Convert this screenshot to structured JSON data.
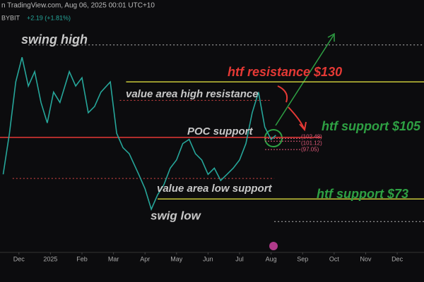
{
  "chart_data": {
    "type": "line",
    "header": "n TradingView.com, Aug 06, 2025 00:01 UTC+10",
    "symbol": "BYBIT",
    "change": "+2.19 (+1.81%)",
    "xlim": [
      -0.6,
      12.85
    ],
    "ylim": [
      47,
      163
    ],
    "xticks": [
      {
        "value": 0,
        "label": "Dec"
      },
      {
        "value": 1,
        "label": "2025"
      },
      {
        "value": 2,
        "label": "Feb"
      },
      {
        "value": 3,
        "label": "Mar"
      },
      {
        "value": 4,
        "label": "Apr"
      },
      {
        "value": 5,
        "label": "May"
      },
      {
        "value": 6,
        "label": "Jun"
      },
      {
        "value": 7,
        "label": "Jul"
      },
      {
        "value": 8,
        "label": "Aug"
      },
      {
        "value": 9,
        "label": "Sep"
      },
      {
        "value": 10,
        "label": "Oct"
      },
      {
        "value": 11,
        "label": "Nov"
      },
      {
        "value": 12,
        "label": "Dec"
      }
    ],
    "series": [
      {
        "name": "BYBIT",
        "color": "#26a69a",
        "x": [
          -0.5,
          -0.3,
          -0.1,
          0.1,
          0.3,
          0.5,
          0.7,
          0.9,
          1.1,
          1.3,
          1.6,
          1.8,
          2.0,
          2.2,
          2.4,
          2.6,
          2.9,
          3.1,
          3.3,
          3.5,
          3.8,
          4.0,
          4.2,
          4.4,
          4.6,
          4.8,
          5.0,
          5.2,
          5.4,
          5.6,
          5.8,
          6.0,
          6.2,
          6.4,
          6.6,
          6.8,
          7.0,
          7.2,
          7.4,
          7.6,
          7.8,
          8.0,
          8.15
        ],
        "values": [
          85,
          105,
          130,
          142,
          128,
          135,
          120,
          110,
          125,
          120,
          135,
          128,
          132,
          115,
          118,
          125,
          130,
          105,
          98,
          95,
          85,
          78,
          68,
          75,
          80,
          88,
          92,
          100,
          102,
          95,
          92,
          85,
          88,
          82,
          85,
          88,
          92,
          100,
          115,
          125,
          108,
          102,
          104
        ]
      }
    ],
    "levels": [
      {
        "value": 148,
        "color": "#bbbbbb",
        "style": "dotted",
        "from": 0.3,
        "to": 12.85
      },
      {
        "value": 130,
        "color": "#c9c93a",
        "style": "solid",
        "from": 3.4,
        "to": 12.85
      },
      {
        "value": 121,
        "color": "#e04848",
        "style": "dotted",
        "from": 3.2,
        "to": 8.0
      },
      {
        "value": 103,
        "color": "#e53935",
        "style": "solid",
        "from": -0.6,
        "to": 9.6
      },
      {
        "value": 83,
        "color": "#e04848",
        "style": "dotted",
        "from": -0.2,
        "to": 8.1
      },
      {
        "value": 73,
        "color": "#c9c93a",
        "style": "solid",
        "from": 4.4,
        "to": 12.85
      },
      {
        "value": 62,
        "color": "#bbbbbb",
        "style": "dotted",
        "from": 8.1,
        "to": 12.85
      }
    ],
    "targets": {
      "values": [
        102.48,
        101.12,
        97.05
      ],
      "value_labels": [
        "(102.48)",
        "(101.12)",
        "(97.05)"
      ],
      "color": "#e05a7a"
    },
    "annotations": [
      {
        "text": "swing high",
        "color": "#c8c8c8"
      },
      {
        "text": "htf resistance $130",
        "color": "#e53935"
      },
      {
        "text": "value area high resistance",
        "color": "#c8c8c8"
      },
      {
        "text": "POC support",
        "color": "#c8c8c8"
      },
      {
        "text": "htf support $105",
        "color": "#2ea043"
      },
      {
        "text": "value area low support",
        "color": "#c8c8c8"
      },
      {
        "text": "htf support $73",
        "color": "#2ea043"
      },
      {
        "text": "swig low",
        "color": "#c8c8c8"
      }
    ]
  }
}
